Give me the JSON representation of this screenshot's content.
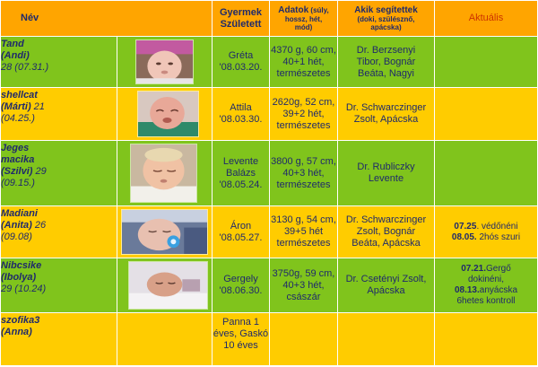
{
  "header": {
    "nev": "Név",
    "gyermek_line1": "Gyermek",
    "gyermek_line2": "Született",
    "adatok_main": "Adatok",
    "adatok_small1": " (súly,",
    "adatok_small2": "hossz, hét,",
    "adatok_small3": "mód)",
    "akik_line1": "Akik segítettek",
    "akik_small1": "(doki, szülésznő,",
    "akik_small2": "apácska)",
    "aktualis": "Aktuális"
  },
  "rows": [
    {
      "nick1": "Tand",
      "nick2": "(Andi)",
      "extra": "28 (07.31.)",
      "child_lines": [
        "Gréta",
        "'08.03.20."
      ],
      "data_lines": [
        "4370 g, 60 cm,",
        "40+1 hét,",
        "természetes"
      ],
      "helpers_lines": [
        "Dr. Berzsenyi",
        "Tibor, Bognár",
        "Beáta, Nagyi"
      ],
      "akt": []
    },
    {
      "nick1": "shellcat",
      "nick2": "(Márti)",
      "extra_inline": " 21",
      "extra": "(04.25.)",
      "child_lines": [
        "Attila",
        "'08.03.30."
      ],
      "data_lines": [
        "2620g, 52 cm,",
        "39+2 hét,",
        "természetes"
      ],
      "helpers_lines": [
        "Dr. Schwarczinger",
        "Zsolt, Apácska"
      ],
      "akt": []
    },
    {
      "nick1": "Jeges",
      "nick2": "macika",
      "nick3": "(Szilvi)",
      "extra_inline": "  29",
      "extra": "(09.15.)",
      "child_lines": [
        "Levente",
        "Balázs",
        "'08.05.24."
      ],
      "data_lines": [
        "3800 g, 57 cm,",
        "40+3 hét,",
        "természetes"
      ],
      "helpers_lines": [
        "Dr. Rubliczky",
        "Levente"
      ],
      "akt": []
    },
    {
      "nick1": "Madiani",
      "nick2": "(Anita)",
      "extra_inline": " 26",
      "extra": "(09.08)",
      "child_lines": [
        "Áron",
        "'08.05.27."
      ],
      "data_lines": [
        "3130 g, 54 cm,",
        "39+5 hét",
        "természetes"
      ],
      "helpers_lines": [
        "Dr. Schwarczinger",
        "Zsolt, Bognár",
        "Beáta, Apácska"
      ],
      "akt": [
        {
          "bold": "07.25",
          "text": ". védőnéni"
        },
        {
          "bold": "08.05.",
          "text": "  2hós szuri"
        }
      ]
    },
    {
      "nick1": "Nibcsike",
      "nick2": "(Ibolya)",
      "extra": "29 (10.24)",
      "child_lines": [
        "Gergely",
        "'08.06.30."
      ],
      "data_lines": [
        "3750g, 59 cm,",
        "40+3 hét,",
        "császár"
      ],
      "helpers_lines": [
        "Dr. Csetényi Zsolt,",
        "Apácska"
      ],
      "akt": [
        {
          "bold": "07.21.",
          "text": "Gergő"
        },
        {
          "bold": "",
          "text": "dokinéni,"
        },
        {
          "bold": "08.13.",
          "text": "anyácska"
        },
        {
          "bold": "",
          "text": "6hetes kontroll"
        }
      ]
    },
    {
      "nick1": "szofika3",
      "nick2": "(Anna)",
      "extra": "",
      "child_lines": [
        "Panna 1",
        "éves, Gaskó",
        "10 éves"
      ],
      "data_lines": [],
      "helpers_lines": [],
      "akt": []
    }
  ]
}
